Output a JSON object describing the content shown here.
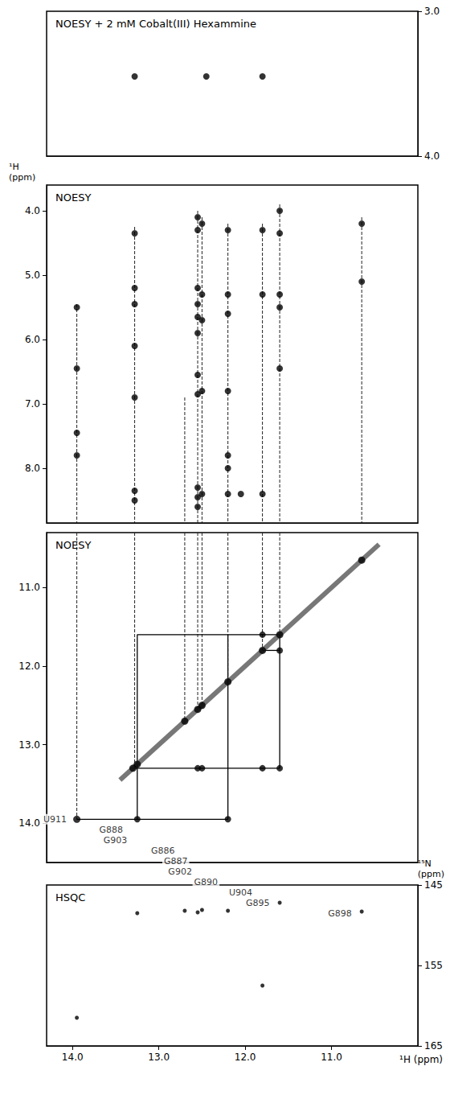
{
  "chart_data": [
    {
      "type": "scatter",
      "title": "NOESY + 2 mM Cobalt(III) Hexammine",
      "xlim": [
        14.3,
        10.0
      ],
      "ylim": [
        4.0,
        3.0
      ],
      "yticks": [
        {
          "value": 3,
          "label": "3.0"
        },
        {
          "value": 4,
          "label": "4.0"
        }
      ],
      "tick_labels": "y",
      "color": "#000000",
      "x": [
        13.28,
        12.45,
        11.8
      ],
      "values": [
        3.45,
        3.45,
        3.45
      ]
    },
    {
      "type": "scatter",
      "title": "NOESY",
      "ylabel": "¹H (ppm)",
      "xlim": [
        14.3,
        10.0
      ],
      "ylim": [
        8.85,
        3.6
      ],
      "yticks": [
        {
          "value": 4,
          "label": "4.0"
        },
        {
          "value": 5,
          "label": "5.0"
        },
        {
          "value": 6,
          "label": "6.0"
        },
        {
          "value": 7,
          "label": "7.0"
        },
        {
          "value": 8,
          "label": "8.0"
        }
      ],
      "tick_labels": "y",
      "color": "#000000",
      "x": [
        13.95,
        13.95,
        13.95,
        13.95,
        13.28,
        13.28,
        13.28,
        13.28,
        13.28,
        13.28,
        13.28,
        12.55,
        12.55,
        12.55,
        12.55,
        12.55,
        12.55,
        12.55,
        12.55,
        12.55,
        12.55,
        12.55,
        12.5,
        12.5,
        12.5,
        12.5,
        12.5,
        12.2,
        12.2,
        12.2,
        12.2,
        12.2,
        12.2,
        12.2,
        12.05,
        11.8,
        11.8,
        11.8,
        11.6,
        11.6,
        11.6,
        11.6,
        11.6,
        10.65,
        10.65
      ],
      "values": [
        5.5,
        6.45,
        7.45,
        7.8,
        4.35,
        5.2,
        5.45,
        6.1,
        6.9,
        8.35,
        8.5,
        4.1,
        4.3,
        5.2,
        5.45,
        5.65,
        5.9,
        6.55,
        6.85,
        8.3,
        8.45,
        8.6,
        4.2,
        5.3,
        5.7,
        6.8,
        8.4,
        4.3,
        5.3,
        5.6,
        6.8,
        7.8,
        8.0,
        8.4,
        8.4,
        4.3,
        5.3,
        8.4,
        4.0,
        4.35,
        5.3,
        5.5,
        6.45,
        4.2,
        5.1
      ],
      "guides": [
        {
          "x": 13.95,
          "y": [
            5.45,
            8.85
          ]
        },
        {
          "x": 13.28,
          "y": [
            4.25,
            8.85
          ]
        },
        {
          "x": 12.7,
          "y": [
            6.9,
            8.85
          ]
        },
        {
          "x": 12.55,
          "y": [
            4.0,
            8.85
          ]
        },
        {
          "x": 12.5,
          "y": [
            4.1,
            8.85
          ]
        },
        {
          "x": 12.2,
          "y": [
            4.2,
            8.85
          ]
        },
        {
          "x": 11.8,
          "y": [
            4.2,
            8.85
          ]
        },
        {
          "x": 11.6,
          "y": [
            3.9,
            8.85
          ]
        },
        {
          "x": 10.65,
          "y": [
            4.1,
            8.85
          ]
        }
      ]
    },
    {
      "type": "scatter",
      "title": "NOESY",
      "xlim": [
        14.3,
        10.0
      ],
      "ylim": [
        14.5,
        10.3
      ],
      "yticks": [
        {
          "value": 11,
          "label": "11.0"
        },
        {
          "value": 12,
          "label": "12.0"
        },
        {
          "value": 13,
          "label": "13.0"
        },
        {
          "value": 14,
          "label": "14.0"
        }
      ],
      "tick_labels": "y",
      "color": "#000000",
      "x": [
        12.55,
        12.5,
        11.8,
        11.6,
        11.6,
        13.25,
        12.2,
        11.8
      ],
      "values": [
        13.3,
        13.3,
        13.3,
        13.3,
        11.8,
        13.95,
        13.95,
        11.6
      ],
      "diagonal": {
        "x": [
          10.65,
          11.6,
          11.8,
          12.2,
          12.5,
          12.55,
          12.7,
          13.25,
          13.3,
          13.95
        ],
        "labels": [
          "G898",
          "G895",
          "U904",
          "G890",
          "G902",
          "G887",
          "G886",
          "G903",
          "G888",
          "U911"
        ]
      },
      "diagonal_range": [
        10.45,
        13.45
      ],
      "walk": [
        [
          [
            13.95,
            13.95
          ],
          [
            13.25,
            13.95
          ],
          [
            13.25,
            11.6
          ],
          [
            11.6,
            11.6
          ]
        ],
        [
          [
            13.25,
            13.95
          ],
          [
            12.2,
            13.95
          ],
          [
            12.2,
            11.6
          ]
        ],
        [
          [
            13.3,
            13.3
          ],
          [
            11.6,
            13.3
          ],
          [
            11.6,
            11.6
          ]
        ],
        [
          [
            11.8,
            11.8
          ],
          [
            11.6,
            11.8
          ]
        ]
      ],
      "guides": [
        {
          "x": 13.95,
          "y": [
            10.3,
            13.95
          ]
        },
        {
          "x": 13.28,
          "y": [
            10.3,
            13.3
          ]
        },
        {
          "x": 12.7,
          "y": [
            10.3,
            12.7
          ]
        },
        {
          "x": 12.55,
          "y": [
            10.3,
            12.55
          ]
        },
        {
          "x": 12.5,
          "y": [
            10.3,
            12.5
          ]
        },
        {
          "x": 12.2,
          "y": [
            10.3,
            12.2
          ]
        },
        {
          "x": 11.8,
          "y": [
            10.3,
            11.8
          ]
        },
        {
          "x": 11.6,
          "y": [
            10.3,
            11.6
          ]
        }
      ]
    },
    {
      "type": "scatter",
      "title": "HSQC",
      "xlabel": "¹H (ppm)",
      "ylabel": "¹⁵N (ppm)",
      "xlim": [
        14.3,
        10.0
      ],
      "ylim": [
        165,
        145
      ],
      "xticks": [
        {
          "value": 14,
          "label": "14.0"
        },
        {
          "value": 13,
          "label": "13.0"
        },
        {
          "value": 12,
          "label": "12.0"
        },
        {
          "value": 11,
          "label": "11.0"
        }
      ],
      "yticks": [
        145,
        155,
        165
      ],
      "color": "#000000",
      "x": [
        13.95,
        13.25,
        12.7,
        12.55,
        12.5,
        12.2,
        11.8,
        11.6,
        10.65
      ],
      "values": [
        161.5,
        148.5,
        148.2,
        148.4,
        148.1,
        148.2,
        157.5,
        147.2,
        148.3
      ]
    }
  ]
}
